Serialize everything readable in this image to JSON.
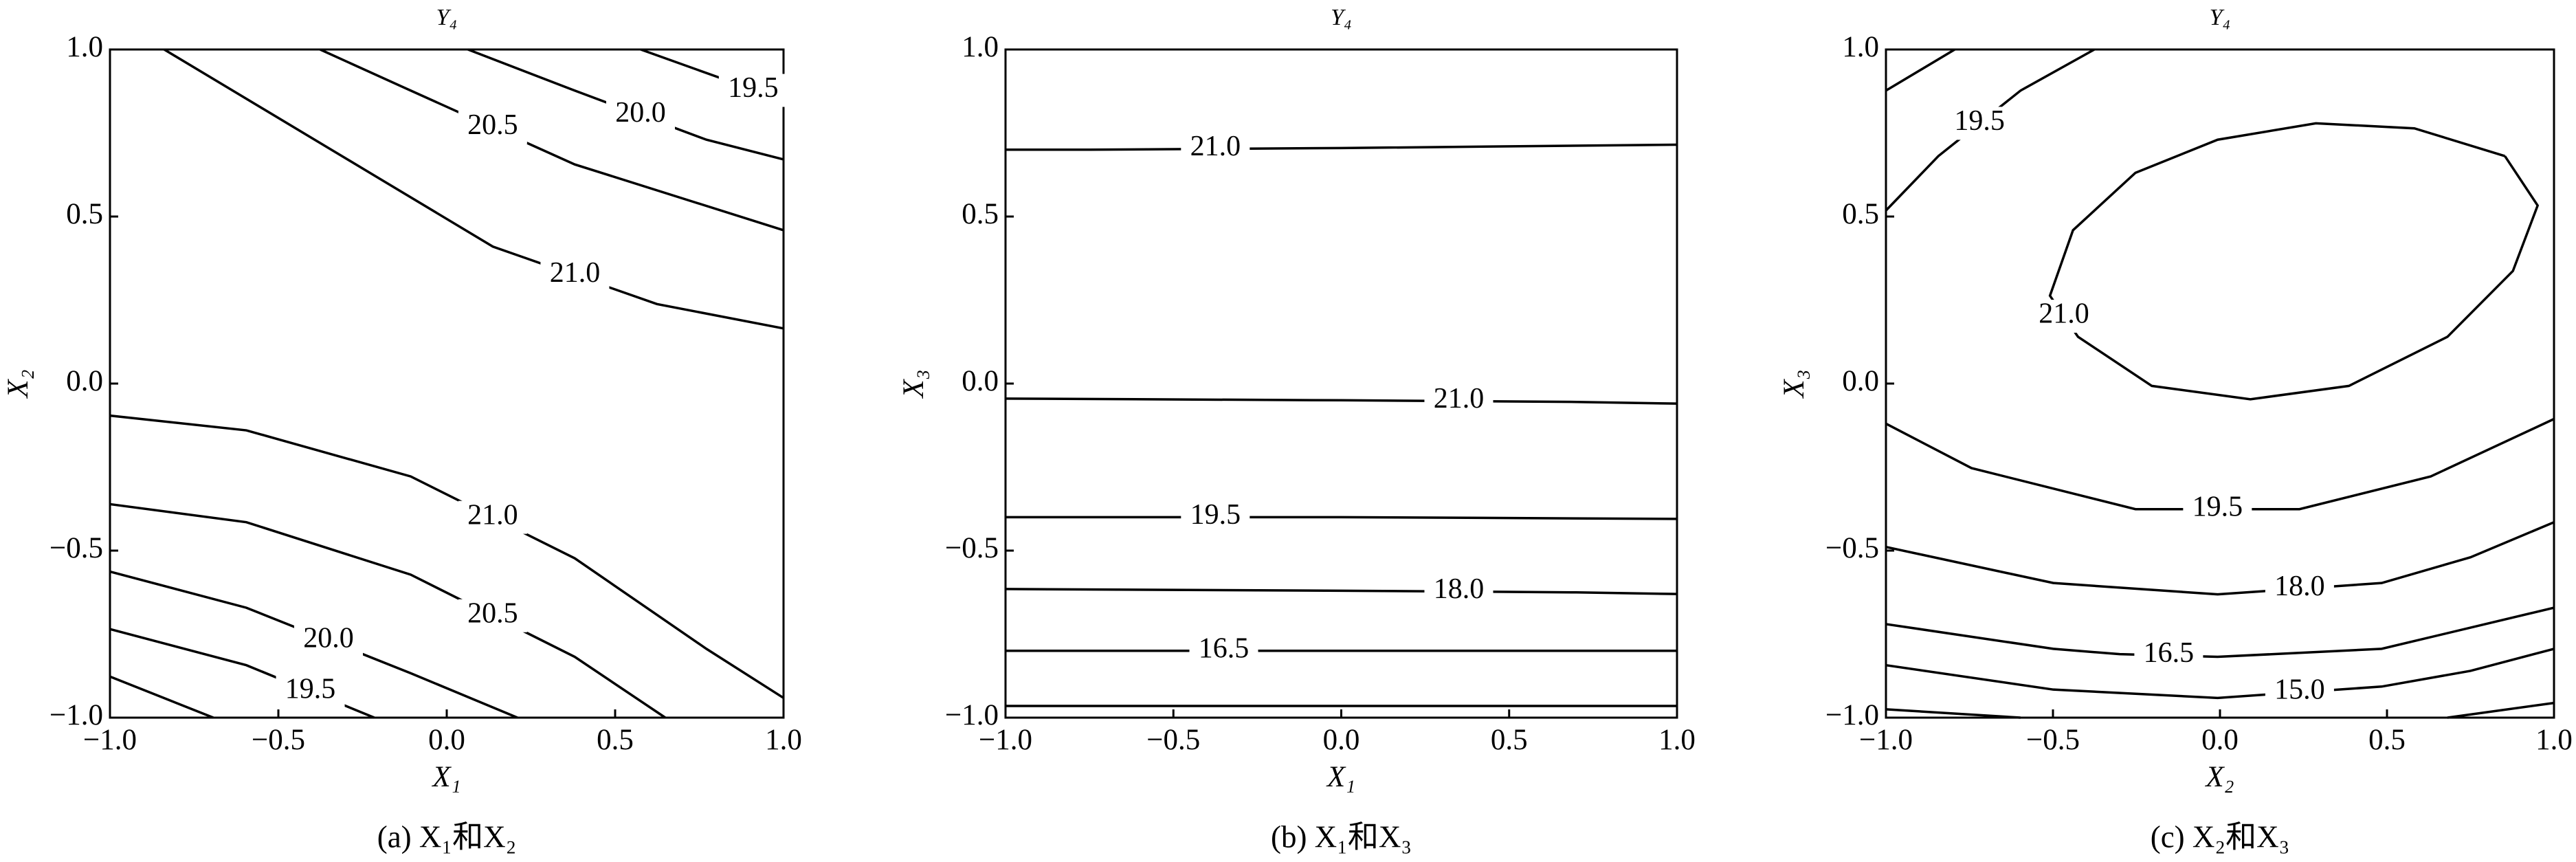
{
  "chart_data": [
    {
      "type": "contour",
      "title": "Y₄",
      "xlabel": "X₁",
      "ylabel": "X₂",
      "caption": "(a) X₁和X₂",
      "xlim": [
        -1,
        1
      ],
      "ylim": [
        -1,
        1
      ],
      "xticks": [
        {
          "value": -1,
          "label": "−1.0"
        },
        {
          "value": -0.5,
          "label": "−0.5"
        },
        {
          "value": 0,
          "label": "0.0"
        },
        {
          "value": 0.5,
          "label": "0.5"
        },
        {
          "value": 1,
          "label": "1.0"
        }
      ],
      "yticks": [
        {
          "value": -1,
          "label": "−1.0"
        },
        {
          "value": -0.5,
          "label": "−0.5"
        },
        {
          "value": 0,
          "label": "0.0"
        },
        {
          "value": 0.5,
          "label": "0.5"
        },
        {
          "value": 1,
          "label": "1.0"
        }
      ],
      "color": "#000000",
      "contours": [
        {
          "level": 21,
          "label": "21.0",
          "x": [
            -0.839,
            -0.351,
            0.137,
            0.624,
            1
          ],
          "y": [
            1,
            0.705,
            0.41,
            0.238,
            0.165
          ]
        },
        {
          "level": 20.5,
          "label": "20.5",
          "x": [
            -0.376,
            -0.107,
            0.38,
            1
          ],
          "y": [
            1,
            0.877,
            0.656,
            0.459
          ]
        },
        {
          "level": 20,
          "label": "20.0",
          "x": [
            0.063,
            0.38,
            0.771,
            1
          ],
          "y": [
            1,
            0.877,
            0.73,
            0.671
          ]
        },
        {
          "level": 19.5,
          "label": "19.5",
          "x": [
            0.576,
            0.82,
            1
          ],
          "y": [
            1,
            0.912,
            0.843
          ]
        },
        {
          "level": 21,
          "label": "21.0",
          "x": [
            -1,
            -0.595,
            -0.107,
            0.38,
            0.771,
            1
          ],
          "y": [
            -0.096,
            -0.14,
            -0.278,
            -0.523,
            -0.794,
            -0.941
          ]
        },
        {
          "level": 20.5,
          "label": "20.5",
          "x": [
            -1,
            -0.595,
            -0.107,
            0.38,
            0.649
          ],
          "y": [
            -0.361,
            -0.415,
            -0.572,
            -0.818,
            -1
          ]
        },
        {
          "level": 20,
          "label": "20.0",
          "x": [
            -1,
            -0.595,
            -0.107,
            0.21
          ],
          "y": [
            -0.563,
            -0.671,
            -0.867,
            -1
          ]
        },
        {
          "level": 19.5,
          "label": "19.5",
          "x": [
            -1,
            -0.595,
            -0.215
          ],
          "y": [
            -0.735,
            -0.843,
            -1
          ]
        },
        {
          "level": 19,
          "x": [
            -1,
            -0.693
          ],
          "y": [
            -0.877,
            -1
          ]
        }
      ]
    },
    {
      "type": "contour",
      "title": "Y₄",
      "xlabel": "X₁",
      "ylabel": "X₃",
      "caption": "(b) X₁和X₃",
      "xlim": [
        -1,
        1
      ],
      "ylim": [
        -1,
        1
      ],
      "xticks": [
        {
          "value": -1,
          "label": "−1.0"
        },
        {
          "value": -0.5,
          "label": "−0.5"
        },
        {
          "value": 0,
          "label": "0.0"
        },
        {
          "value": 0.5,
          "label": "0.5"
        },
        {
          "value": 1,
          "label": "1.0"
        }
      ],
      "yticks": [
        {
          "value": -1,
          "label": "−1.0"
        },
        {
          "value": -0.5,
          "label": "−0.5"
        },
        {
          "value": 0,
          "label": "0.0"
        },
        {
          "value": 0.5,
          "label": "0.5"
        },
        {
          "value": 1,
          "label": "1.0"
        }
      ],
      "color": "#000000",
      "contours": [
        {
          "level": 21,
          "label": "21.0",
          "x": [
            -1,
            -0.75,
            0,
            1
          ],
          "y": [
            0.7,
            0.7,
            0.705,
            0.715
          ]
        },
        {
          "level": 21,
          "label": "21.0",
          "x": [
            -1,
            0,
            0.7,
            1
          ],
          "y": [
            -0.045,
            -0.05,
            -0.055,
            -0.06
          ]
        },
        {
          "level": 19.5,
          "label": "19.5",
          "x": [
            -1,
            -0.75,
            0,
            1
          ],
          "y": [
            -0.4,
            -0.4,
            -0.4,
            -0.405
          ]
        },
        {
          "level": 18,
          "label": "18.0",
          "x": [
            -1,
            0,
            0.7,
            1
          ],
          "y": [
            -0.615,
            -0.62,
            -0.625,
            -0.63
          ]
        },
        {
          "level": 16.5,
          "label": "16.5",
          "x": [
            -1,
            -0.7,
            0,
            1
          ],
          "y": [
            -0.8,
            -0.8,
            -0.8,
            -0.8
          ]
        },
        {
          "level": 15,
          "x": [
            -1,
            0,
            1
          ],
          "y": [
            -0.965,
            -0.965,
            -0.965
          ]
        }
      ]
    },
    {
      "type": "contour",
      "title": "Y₄",
      "xlabel": "X₂",
      "ylabel": "X₃",
      "caption": "(c) X₂和X₃",
      "xlim": [
        -1,
        1
      ],
      "ylim": [
        -1,
        1
      ],
      "xticks": [
        {
          "value": -1,
          "label": "−1.0"
        },
        {
          "value": -0.5,
          "label": "−0.5"
        },
        {
          "value": 0,
          "label": "0.0"
        },
        {
          "value": 0.5,
          "label": "0.5"
        },
        {
          "value": 1,
          "label": "1.0"
        }
      ],
      "yticks": [
        {
          "value": -1,
          "label": "−1.0"
        },
        {
          "value": -0.5,
          "label": "−0.5"
        },
        {
          "value": 0,
          "label": "0.0"
        },
        {
          "value": 0.5,
          "label": "0.5"
        },
        {
          "value": 1,
          "label": "1.0"
        }
      ],
      "color": "#000000",
      "contours": [
        {
          "level": 21,
          "label": "21.0",
          "x": [
            0.853,
            0.951,
            0.877,
            0.681,
            0.386,
            0.091,
            -0.204,
            -0.425,
            -0.509,
            -0.44,
            -0.253,
            -0.007,
            0.287,
            0.582,
            0.853
          ],
          "y": [
            0.681,
            0.533,
            0.337,
            0.14,
            -0.007,
            -0.047,
            -0.007,
            0.14,
            0.263,
            0.459,
            0.631,
            0.73,
            0.779,
            0.764,
            0.681
          ]
        },
        {
          "level": 19.5,
          "label": "19.5",
          "x": [
            -1,
            -0.843,
            -0.597,
            -0.376
          ],
          "y": [
            0.518,
            0.681,
            0.877,
            1
          ]
        },
        {
          "level": 19,
          "x": [
            -1,
            -0.794
          ],
          "y": [
            0.877,
            1
          ]
        },
        {
          "level": 19.5,
          "label": "19.5",
          "x": [
            -1,
            -0.744,
            -0.253,
            0.238,
            0.631,
            1
          ],
          "y": [
            -0.12,
            -0.253,
            -0.376,
            -0.376,
            -0.278,
            -0.106
          ]
        },
        {
          "level": 18,
          "label": "18.0",
          "x": [
            -1,
            -0.499,
            -0.007,
            0.484,
            0.75,
            1
          ],
          "y": [
            -0.489,
            -0.597,
            -0.631,
            -0.597,
            -0.52,
            -0.415
          ]
        },
        {
          "level": 16.5,
          "label": "16.5",
          "x": [
            -1,
            -0.499,
            -0.3,
            -0.007,
            0.484,
            1
          ],
          "y": [
            -0.72,
            -0.794,
            -0.81,
            -0.818,
            -0.794,
            -0.671
          ]
        },
        {
          "level": 15,
          "label": "15.0",
          "x": [
            -1,
            -0.499,
            -0.007,
            0.484,
            0.75,
            1
          ],
          "y": [
            -0.843,
            -0.916,
            -0.941,
            -0.907,
            -0.86,
            -0.794
          ]
        },
        {
          "level": 13.5,
          "x": [
            -1,
            -0.597
          ],
          "y": [
            -0.975,
            -1
          ]
        },
        {
          "level": 13.5,
          "x": [
            0.681,
            1
          ],
          "y": [
            -1,
            -0.956
          ]
        }
      ]
    }
  ]
}
